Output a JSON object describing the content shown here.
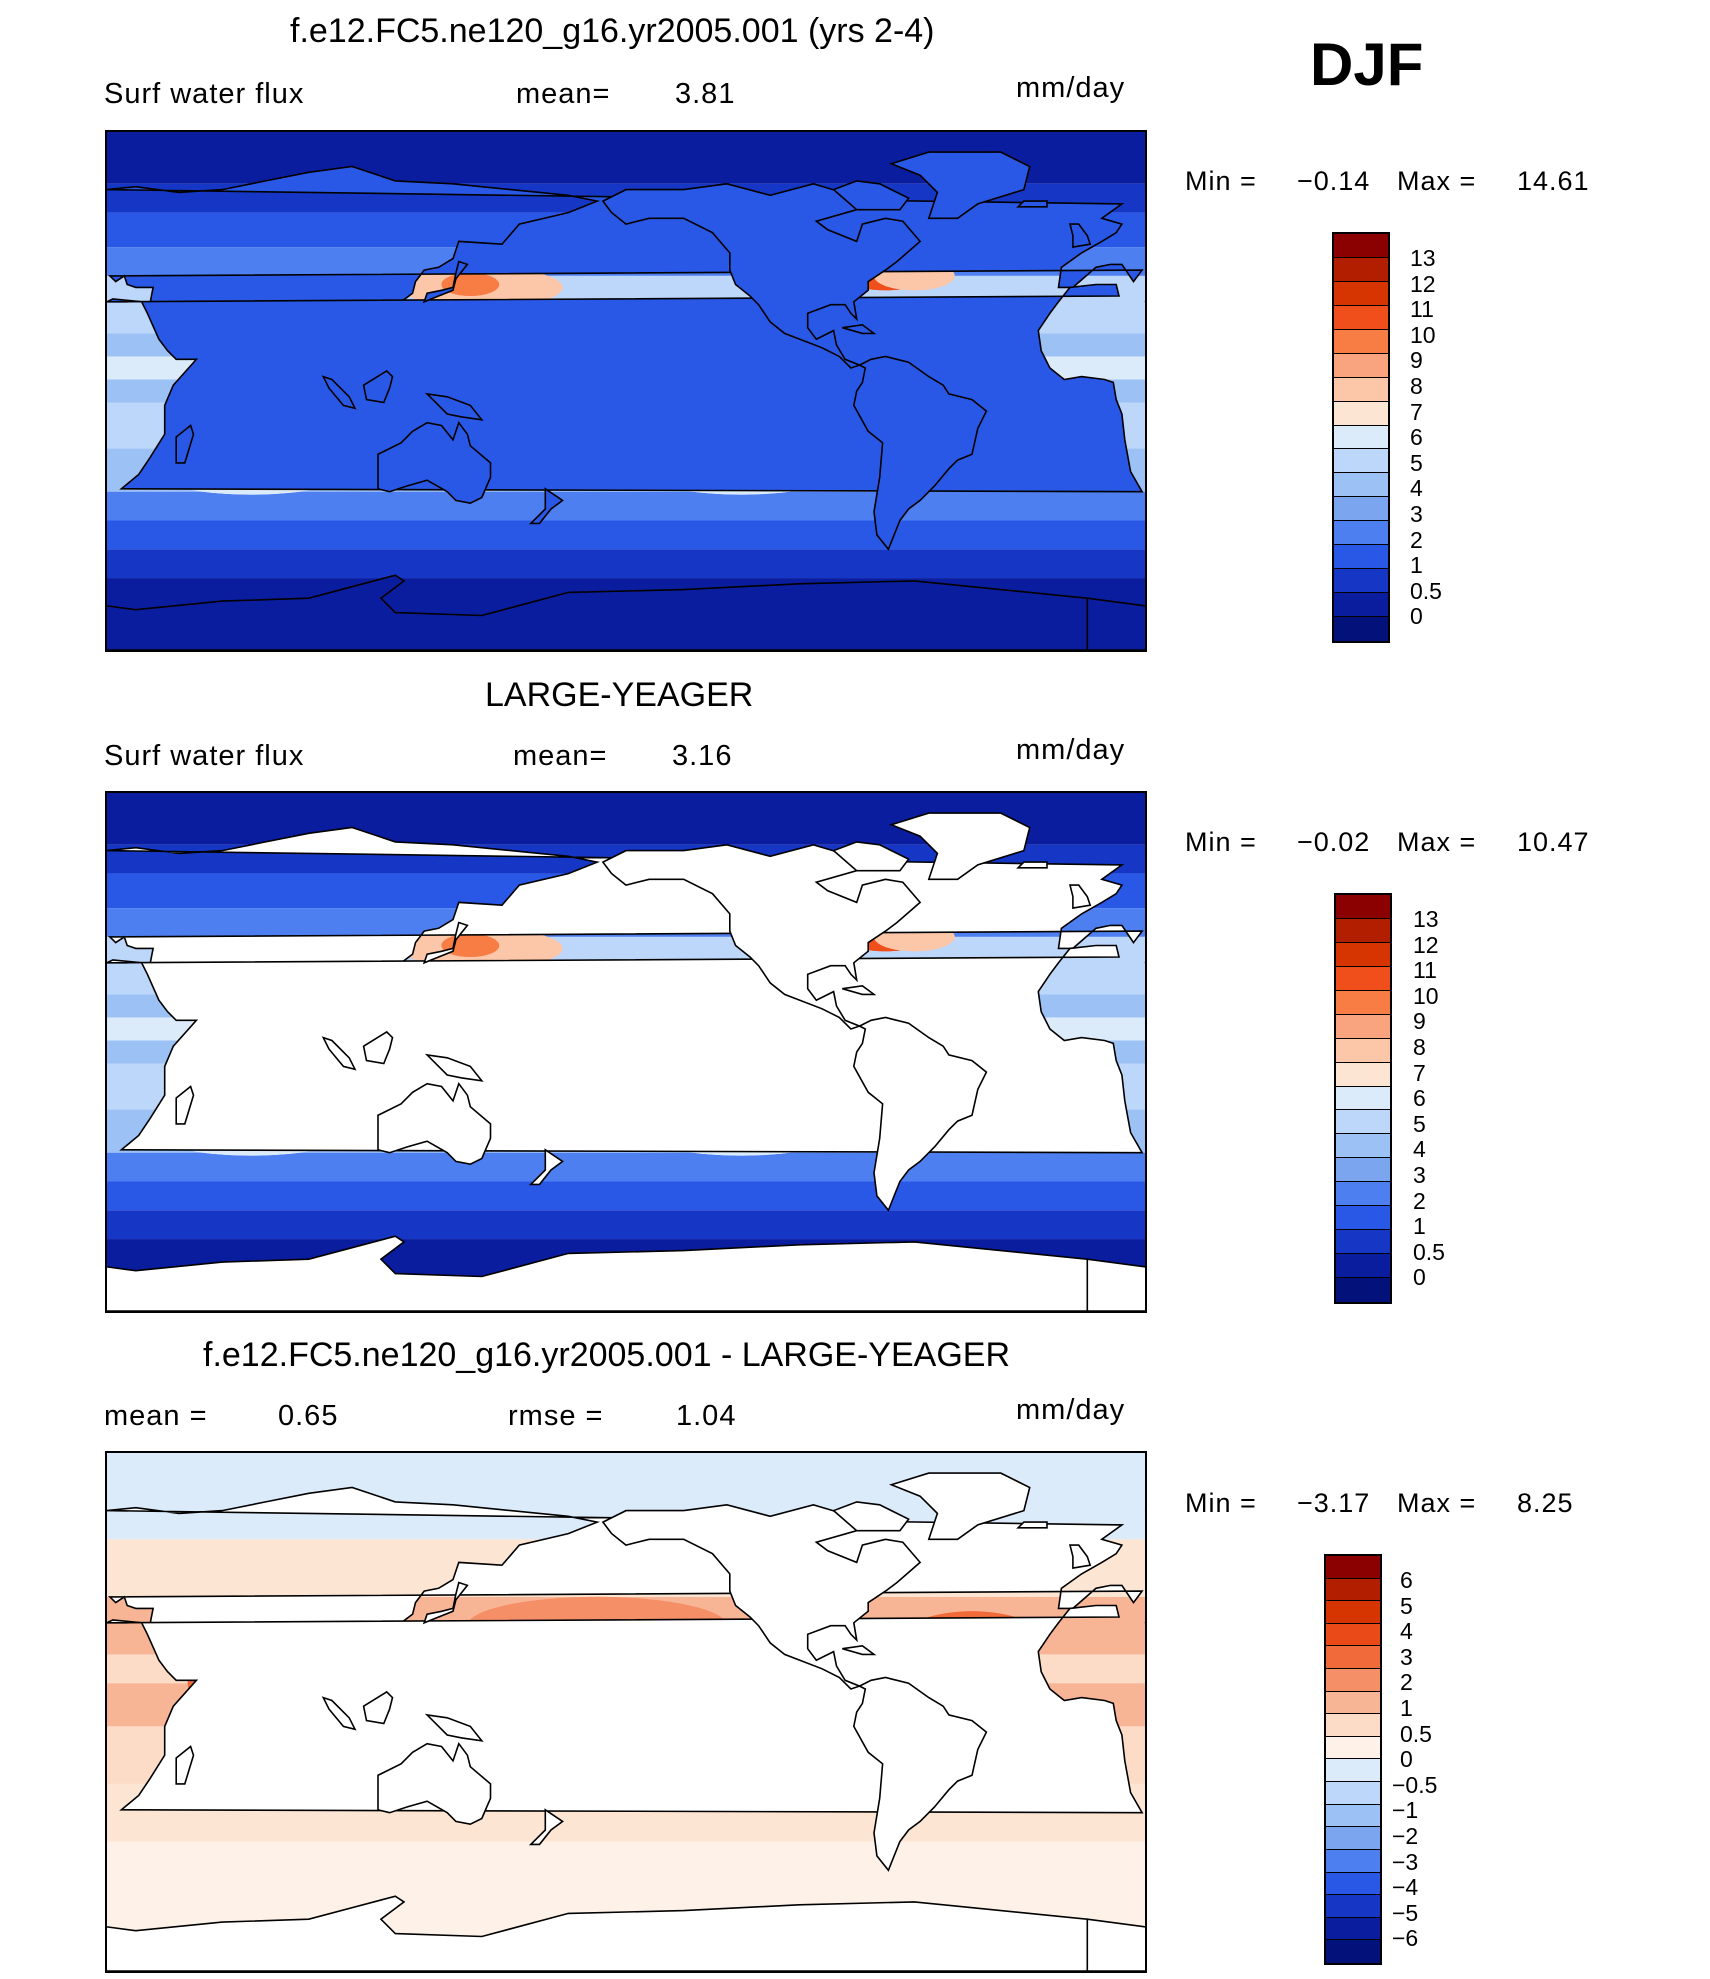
{
  "season": "DJF",
  "panels": [
    {
      "title": "f.e12.FC5.ne120_g16.yr2005.001 (yrs 2-4)",
      "left_label": "Surf water flux",
      "mid_label": "mean=",
      "mid_value": "3.81",
      "right_label": "",
      "right_value": "",
      "units": "mm/day",
      "min_label": "Min =",
      "min_value": "−0.14",
      "max_label": "Max =",
      "max_value": "14.61",
      "field": "model",
      "colorbar_colors": [
        "#8b0000",
        "#b21e00",
        "#d63400",
        "#f04e1a",
        "#f77d45",
        "#faa47f",
        "#fcc6a8",
        "#fde5d3",
        "#dcebfa",
        "#bdd7fb",
        "#9cc2f5",
        "#7ba6ef",
        "#4e7ff0",
        "#2a58e6",
        "#1637c6",
        "#0a1d9e",
        "#03127a"
      ],
      "colorbar_ticks": [
        "13",
        "12",
        "11",
        "10",
        "9",
        "8",
        "7",
        "6",
        "5",
        "4",
        "3",
        "2",
        "1",
        "0.5",
        "0"
      ]
    },
    {
      "title": "LARGE-YEAGER",
      "left_label": "Surf water flux",
      "mid_label": "mean=",
      "mid_value": "3.16",
      "right_label": "",
      "right_value": "",
      "units": "mm/day",
      "min_label": "Min =",
      "min_value": "−0.02",
      "max_label": "Max =",
      "max_value": "10.47",
      "field": "obs",
      "colorbar_colors": [
        "#8b0000",
        "#b21e00",
        "#d63400",
        "#f04e1a",
        "#f77d45",
        "#faa47f",
        "#fcc6a8",
        "#fde5d3",
        "#dcebfa",
        "#bdd7fb",
        "#9cc2f5",
        "#7ba6ef",
        "#4e7ff0",
        "#2a58e6",
        "#1637c6",
        "#0a1d9e",
        "#03127a"
      ],
      "colorbar_ticks": [
        "13",
        "12",
        "11",
        "10",
        "9",
        "8",
        "7",
        "6",
        "5",
        "4",
        "3",
        "2",
        "1",
        "0.5",
        "0"
      ]
    },
    {
      "title": "f.e12.FC5.ne120_g16.yr2005.001 - LARGE-YEAGER",
      "left_label": "mean =",
      "mid_label": "",
      "mid_value": "0.65",
      "right_label": "rmse =",
      "right_value": "1.04",
      "units": "mm/day",
      "min_label": "Min =",
      "min_value": "−3.17",
      "max_label": "Max =",
      "max_value": "8.25",
      "field": "diff",
      "colorbar_colors": [
        "#8b0000",
        "#b21e00",
        "#d63400",
        "#ea4a18",
        "#f06a3a",
        "#f48f68",
        "#f8b596",
        "#fcdcc7",
        "#fef1e8",
        "#dcebfa",
        "#bdd7fb",
        "#9cc2f5",
        "#7ba6ef",
        "#4e7ff0",
        "#2a58e6",
        "#1637c6",
        "#0a1d9e",
        "#03127a"
      ],
      "colorbar_ticks": [
        "6",
        "5",
        "4",
        "3",
        "2",
        "1",
        "0.5",
        "0",
        "−0.5",
        "−1",
        "−2",
        "−3",
        "−4",
        "−5",
        "−6"
      ]
    }
  ]
}
